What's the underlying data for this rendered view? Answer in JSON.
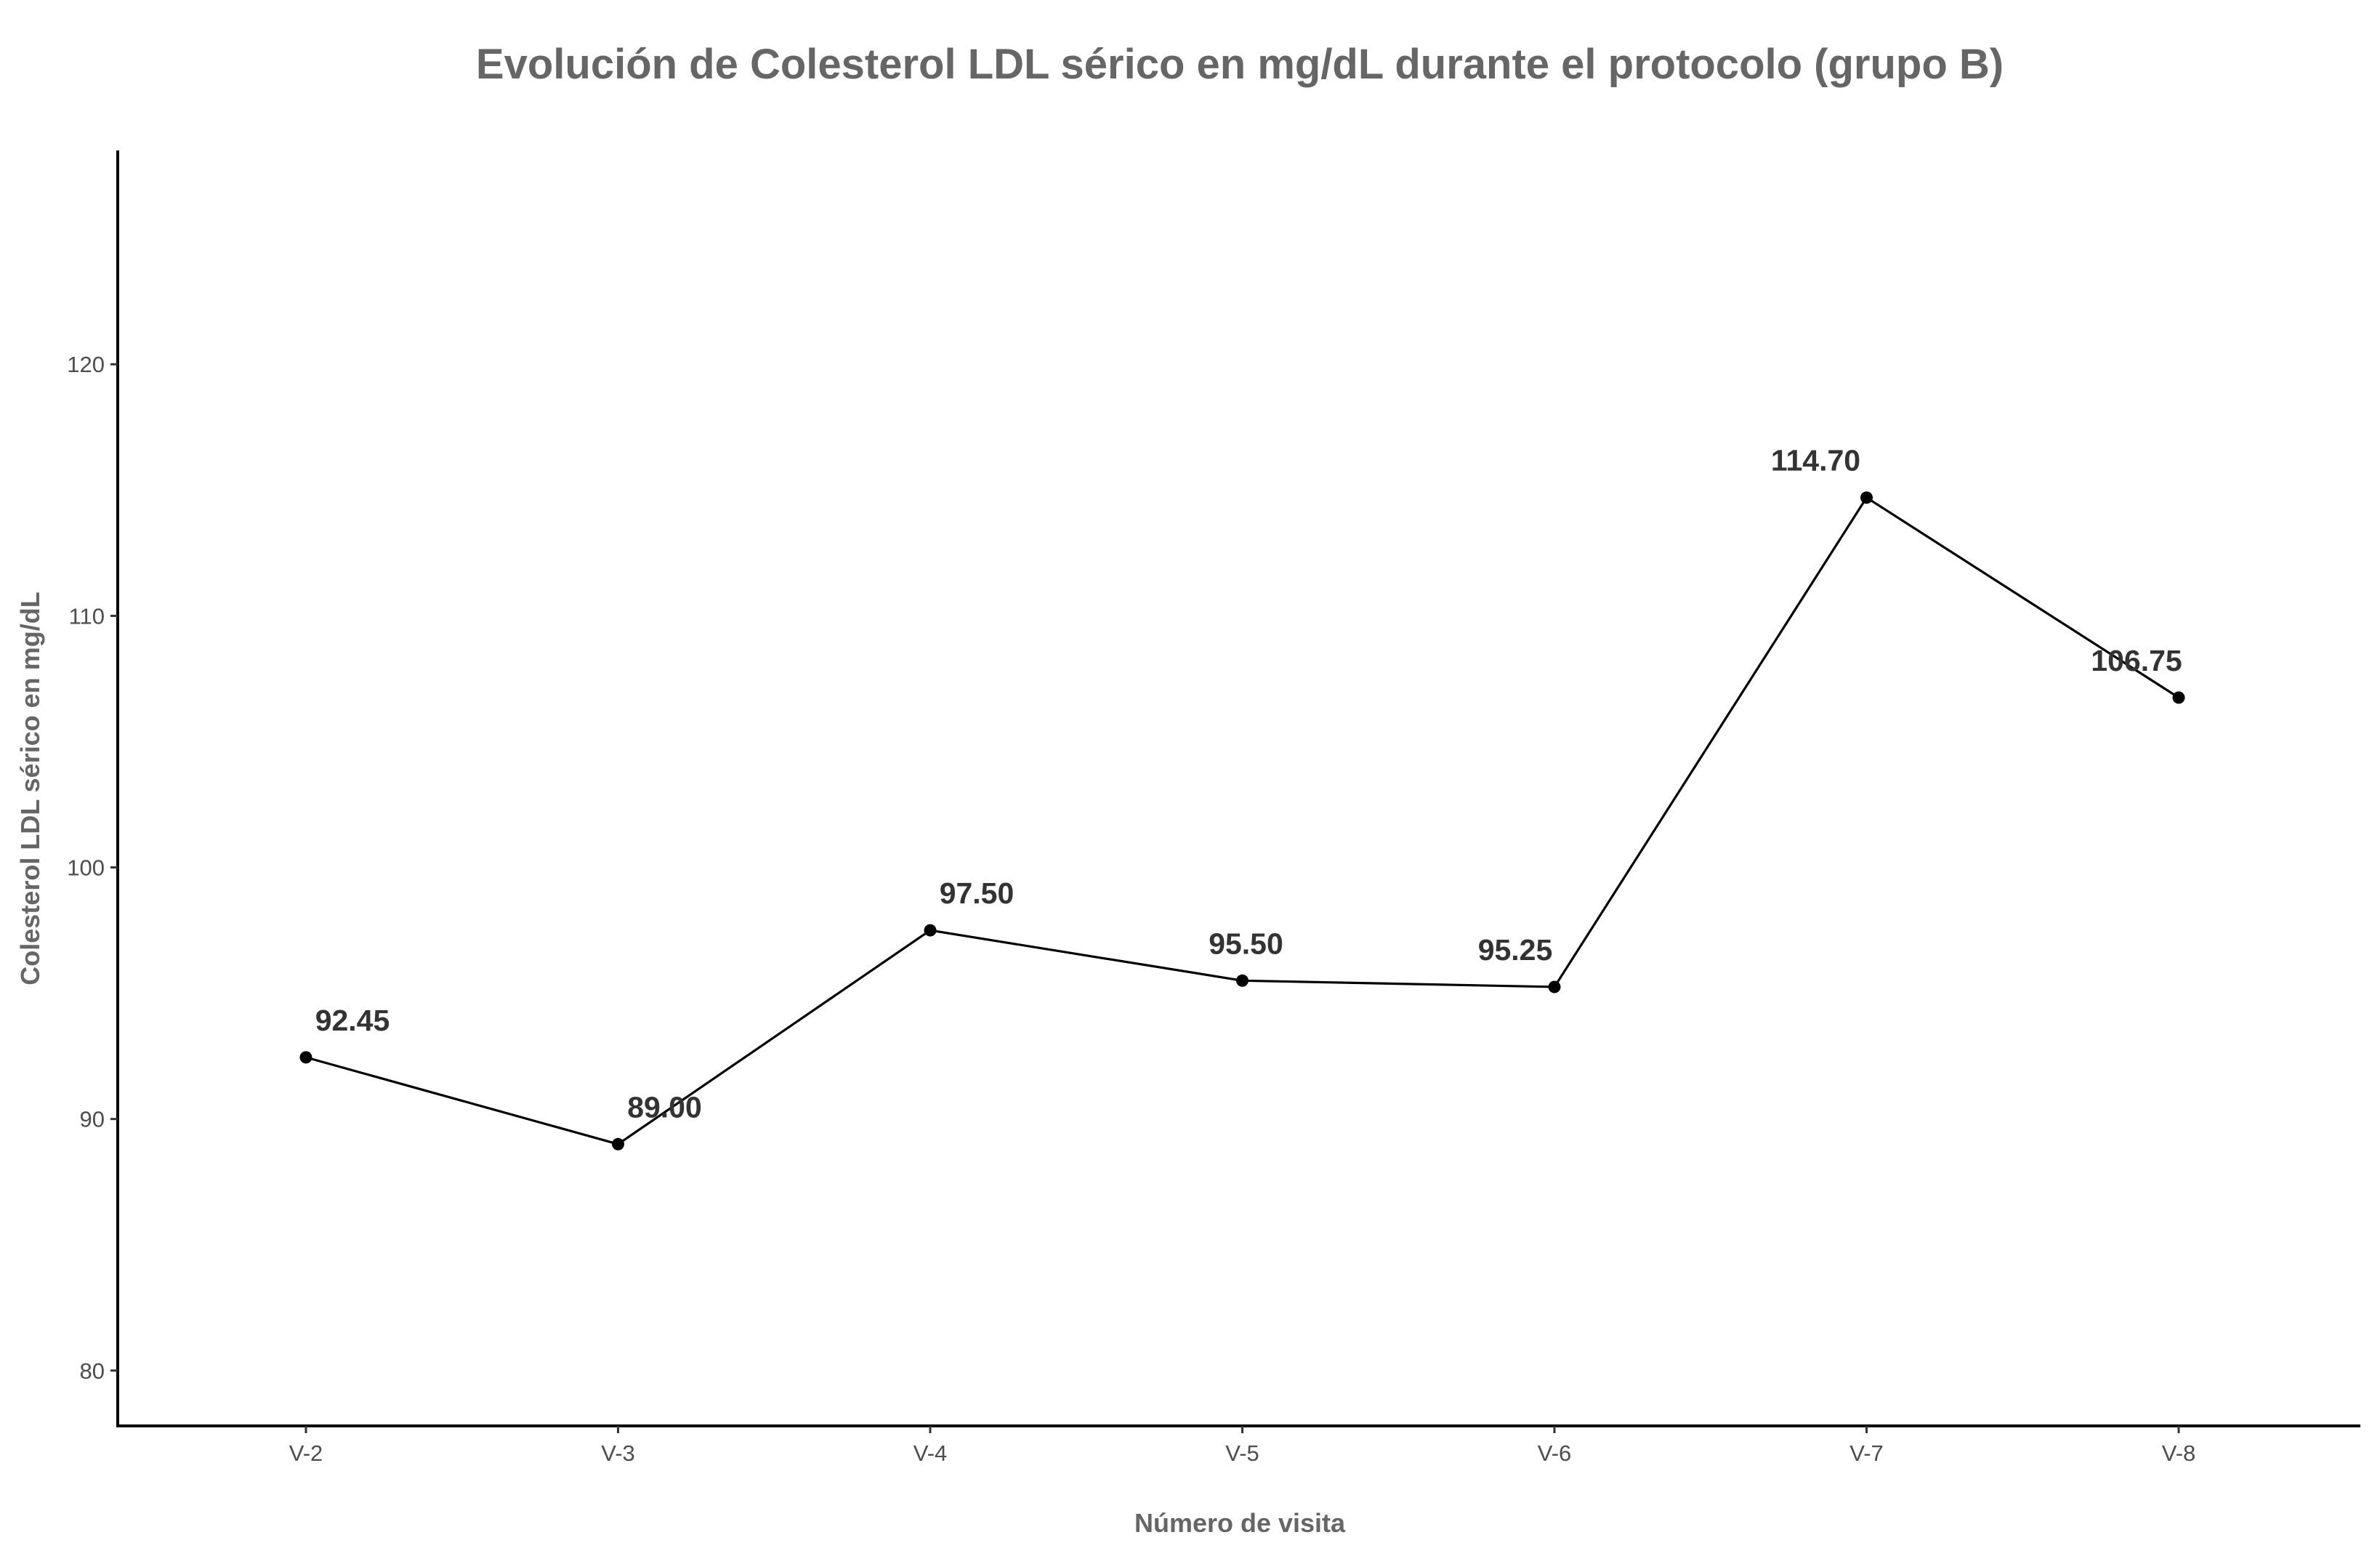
{
  "chart_data": {
    "type": "line",
    "title": "Evolución de Colesterol LDL sérico en mg/dL durante el protocolo (grupo B)",
    "xlabel": "Número de visita",
    "ylabel": "Colesterol LDL sérico en mg/dL",
    "categories": [
      "V-2",
      "V-3",
      "V-4",
      "V-5",
      "V-6",
      "V-7",
      "V-8"
    ],
    "values": [
      92.45,
      89.0,
      97.5,
      95.5,
      95.25,
      114.7,
      106.75
    ],
    "data_labels": [
      "92.45",
      "89.00",
      "97.50",
      "95.50",
      "95.25",
      "114.70",
      "106.75"
    ],
    "yticks": [
      80,
      90,
      100,
      110,
      120
    ],
    "ytick_labels": [
      "80",
      "90",
      "100",
      "110",
      "120"
    ],
    "ylim": [
      77.8,
      128.5
    ],
    "grid": false,
    "legend": "none",
    "colors": {
      "line": "#000000",
      "point": "#000000",
      "title": "#666666",
      "data_label": "#333333"
    }
  }
}
